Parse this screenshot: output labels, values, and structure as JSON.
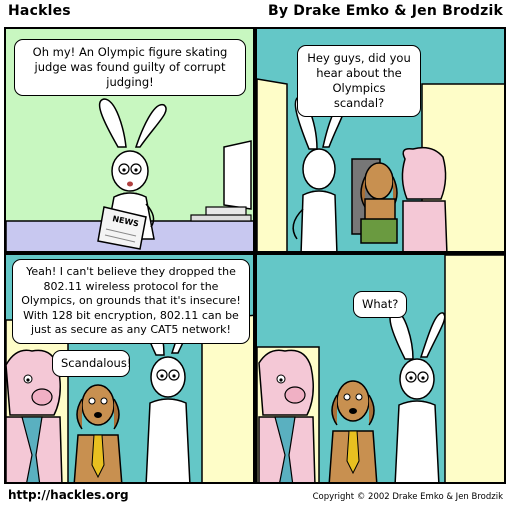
{
  "header": {
    "title": "Hackles",
    "byline": "By Drake Emko & Jen Brodzik"
  },
  "panels": [
    {
      "bubbles": [
        {
          "text": "Oh my! An Olympic figure skating judge was found guilty of corrupt judging!"
        }
      ],
      "props": {
        "newspaper_text": "NEWS"
      }
    },
    {
      "bubbles": [
        {
          "text": "Hey guys, did you hear about the Olympics scandal?"
        }
      ]
    },
    {
      "bubbles": [
        {
          "text": "Yeah! I can't believe they dropped the 802.11 wireless protocol for the Olympics, on grounds that it's insecure! With 128 bit encryption, 802.11 can be just as secure as any CAT5 network!"
        },
        {
          "text": "Scandalous!"
        }
      ]
    },
    {
      "bubbles": [
        {
          "text": "What?"
        }
      ]
    }
  ],
  "footer": {
    "url": "http://hackles.org",
    "copyright": "Copyright © 2002 Drake Emko & Jen Brodzik"
  },
  "colors": {
    "panel1_bg": "#c8f7c0",
    "office_bg": "#64c7c7",
    "wall_yellow": "#fefdc8",
    "pig_pink": "#f4c8d6",
    "dog_brown": "#c89050",
    "tie_blue": "#5ab0c0",
    "tie_yellow": "#e8c020",
    "desk_lavender": "#c8c8f0"
  }
}
